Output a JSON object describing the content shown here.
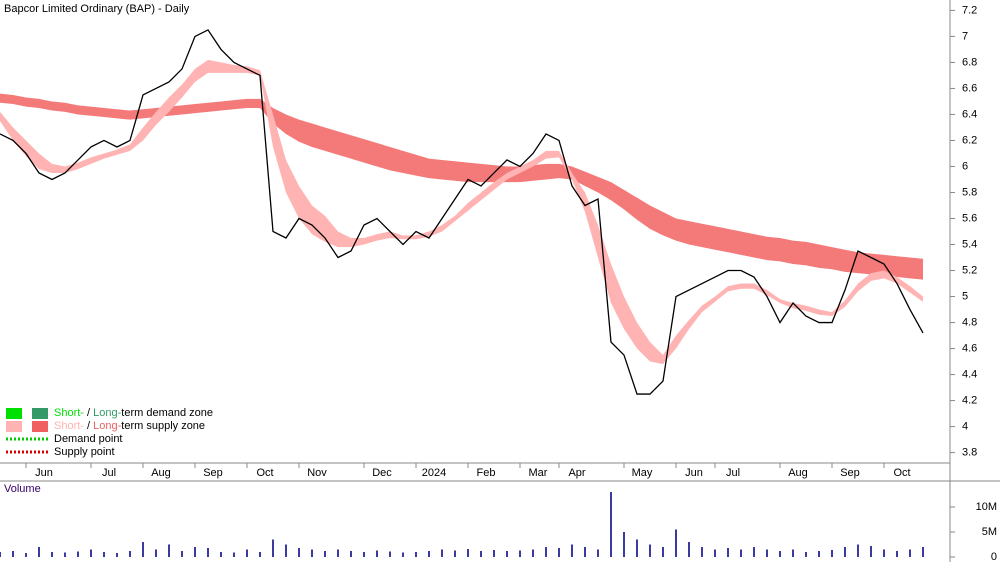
{
  "chart_data": {
    "type": "price",
    "title": "Bapcor Limited Ordinary (BAP) - Daily",
    "categories": [
      null,
      null,
      "Jun",
      null,
      null,
      null,
      null,
      "Jul",
      null,
      null,
      null,
      "Aug",
      null,
      null,
      null,
      "Sep",
      null,
      null,
      null,
      "Oct",
      null,
      null,
      null,
      "Nov",
      null,
      null,
      null,
      null,
      "Dec",
      null,
      null,
      null,
      "2024",
      null,
      null,
      null,
      "Feb",
      null,
      null,
      null,
      "Mar",
      null,
      null,
      "Apr",
      null,
      null,
      null,
      null,
      "May",
      null,
      null,
      null,
      "Jun",
      null,
      null,
      "Jul",
      null,
      null,
      null,
      null,
      "Aug",
      null,
      null,
      null,
      "Sep",
      null,
      null,
      null,
      "Oct",
      null,
      null,
      null
    ],
    "series": [
      {
        "name": "Close",
        "color": "#000000",
        "values": [
          6.25,
          6.2,
          6.1,
          5.95,
          5.9,
          5.95,
          6.05,
          6.15,
          6.2,
          6.15,
          6.2,
          6.55,
          6.6,
          6.65,
          6.75,
          7.0,
          7.05,
          6.9,
          6.8,
          6.75,
          6.7,
          5.5,
          5.45,
          5.6,
          5.55,
          5.45,
          5.3,
          5.35,
          5.55,
          5.6,
          5.5,
          5.4,
          5.5,
          5.45,
          5.6,
          5.75,
          5.9,
          5.85,
          5.95,
          6.05,
          6.0,
          6.1,
          6.25,
          6.2,
          5.85,
          5.7,
          5.75,
          4.65,
          4.55,
          4.25,
          4.25,
          4.35,
          5.0,
          5.05,
          5.1,
          5.15,
          5.2,
          5.2,
          5.15,
          5.0,
          4.8,
          4.95,
          4.85,
          4.8,
          4.8,
          5.05,
          5.35,
          5.3,
          5.25,
          5.1,
          4.9,
          4.72
        ]
      }
    ],
    "bands": [
      {
        "color": "#f47a7a",
        "upper": [
          6.56,
          6.55,
          6.53,
          6.52,
          6.5,
          6.49,
          6.47,
          6.46,
          6.45,
          6.44,
          6.43,
          6.44,
          6.45,
          6.46,
          6.47,
          6.48,
          6.49,
          6.5,
          6.51,
          6.52,
          6.52,
          6.45,
          6.4,
          6.36,
          6.33,
          6.3,
          6.27,
          6.24,
          6.21,
          6.18,
          6.15,
          6.12,
          6.09,
          6.06,
          6.05,
          6.04,
          6.03,
          6.02,
          6.01,
          6.0,
          6.0,
          6.01,
          6.02,
          6.02,
          6.0,
          5.96,
          5.92,
          5.88,
          5.82,
          5.76,
          5.7,
          5.65,
          5.6,
          5.58,
          5.56,
          5.54,
          5.52,
          5.5,
          5.48,
          5.46,
          5.45,
          5.43,
          5.42,
          5.4,
          5.38,
          5.36,
          5.34,
          5.33,
          5.32,
          5.31,
          5.3,
          5.29
        ],
        "lower": [
          6.49,
          6.48,
          6.46,
          6.45,
          6.43,
          6.42,
          6.4,
          6.39,
          6.38,
          6.37,
          6.36,
          6.37,
          6.38,
          6.39,
          6.4,
          6.41,
          6.42,
          6.43,
          6.44,
          6.45,
          6.45,
          6.33,
          6.25,
          6.19,
          6.15,
          6.12,
          6.09,
          6.06,
          6.03,
          6.0,
          5.97,
          5.95,
          5.93,
          5.91,
          5.9,
          5.89,
          5.88,
          5.88,
          5.88,
          5.88,
          5.88,
          5.89,
          5.9,
          5.91,
          5.9,
          5.85,
          5.8,
          5.74,
          5.67,
          5.59,
          5.52,
          5.47,
          5.43,
          5.4,
          5.38,
          5.36,
          5.34,
          5.32,
          5.3,
          5.28,
          5.27,
          5.25,
          5.24,
          5.22,
          5.21,
          5.19,
          5.18,
          5.17,
          5.16,
          5.15,
          5.14,
          5.13
        ]
      },
      {
        "color": "#ffb3b3",
        "upper": [
          6.42,
          6.3,
          6.2,
          6.1,
          6.02,
          6.0,
          6.03,
          6.07,
          6.1,
          6.13,
          6.17,
          6.3,
          6.42,
          6.53,
          6.63,
          6.75,
          6.82,
          6.8,
          6.78,
          6.77,
          6.74,
          6.4,
          6.05,
          5.85,
          5.7,
          5.62,
          5.5,
          5.45,
          5.45,
          5.48,
          5.5,
          5.47,
          5.47,
          5.5,
          5.55,
          5.62,
          5.72,
          5.8,
          5.88,
          5.95,
          6.0,
          6.05,
          6.12,
          6.12,
          5.95,
          5.8,
          5.55,
          5.25,
          5.0,
          4.8,
          4.65,
          4.55,
          4.7,
          4.82,
          4.93,
          5.0,
          5.08,
          5.1,
          5.1,
          5.05,
          4.98,
          4.95,
          4.93,
          4.9,
          4.88,
          4.97,
          5.1,
          5.18,
          5.2,
          5.15,
          5.08,
          5.0
        ],
        "lower": [
          6.35,
          6.2,
          6.08,
          5.98,
          5.95,
          5.95,
          5.98,
          6.02,
          6.06,
          6.09,
          6.12,
          6.2,
          6.32,
          6.42,
          6.53,
          6.65,
          6.72,
          6.72,
          6.72,
          6.72,
          6.7,
          6.15,
          5.8,
          5.6,
          5.48,
          5.42,
          5.38,
          5.38,
          5.4,
          5.43,
          5.45,
          5.44,
          5.44,
          5.46,
          5.5,
          5.58,
          5.66,
          5.74,
          5.82,
          5.9,
          5.95,
          6.0,
          6.06,
          6.07,
          5.9,
          5.65,
          5.3,
          4.95,
          4.75,
          4.6,
          4.5,
          4.48,
          4.6,
          4.75,
          4.88,
          4.96,
          5.04,
          5.06,
          5.06,
          5.01,
          4.95,
          4.91,
          4.89,
          4.86,
          4.85,
          4.92,
          5.04,
          5.12,
          5.14,
          5.1,
          5.03,
          4.96
        ]
      }
    ],
    "ylim": [
      3.72,
      7.28
    ],
    "yticks": [
      3.8,
      4.0,
      4.2,
      4.4,
      4.6,
      4.8,
      5.0,
      5.2,
      5.4,
      5.6,
      5.8,
      6.0,
      6.2,
      6.4,
      6.6,
      6.8,
      7.0,
      7.2
    ],
    "volume": {
      "label": "Volume",
      "color": "#3a3aa0",
      "values": [
        1000000,
        1200000,
        800000,
        2000000,
        1000000,
        900000,
        1100000,
        1500000,
        1000000,
        800000,
        1200000,
        3000000,
        1500000,
        2500000,
        1200000,
        2000000,
        1800000,
        1000000,
        900000,
        1500000,
        1000000,
        3500000,
        2500000,
        1800000,
        1500000,
        1200000,
        1500000,
        1200000,
        1000000,
        1300000,
        1100000,
        900000,
        1000000,
        1200000,
        1500000,
        1300000,
        1600000,
        1200000,
        1400000,
        1200000,
        1300000,
        1500000,
        2000000,
        1800000,
        2500000,
        2000000,
        1500000,
        13000000,
        5000000,
        3500000,
        2500000,
        2000000,
        5500000,
        3000000,
        2000000,
        1500000,
        1800000,
        1500000,
        2000000,
        1500000,
        1200000,
        1500000,
        1000000,
        1200000,
        1400000,
        2000000,
        2500000,
        2200000,
        1500000,
        1200000,
        1500000,
        2000000
      ],
      "ylim": [
        0,
        14000000
      ],
      "yticks": [
        0,
        {
          "value": 5000000,
          "label": "5M"
        },
        {
          "value": 10000000,
          "label": "10M"
        }
      ]
    },
    "legend": [
      {
        "short": "Short-",
        "sep": " / ",
        "long": "Long-",
        "rest": "term demand zone",
        "short_color": "#00e000",
        "long_color": "#339966"
      },
      {
        "short": "Short-",
        "sep": " / ",
        "long": "Long-",
        "rest": "term supply zone",
        "short_color": "#ffb3b3",
        "long_color": "#f06060"
      },
      {
        "text": "Demand point",
        "color": "#00cc00"
      },
      {
        "text": "Supply point",
        "color": "#dd0000"
      }
    ]
  }
}
